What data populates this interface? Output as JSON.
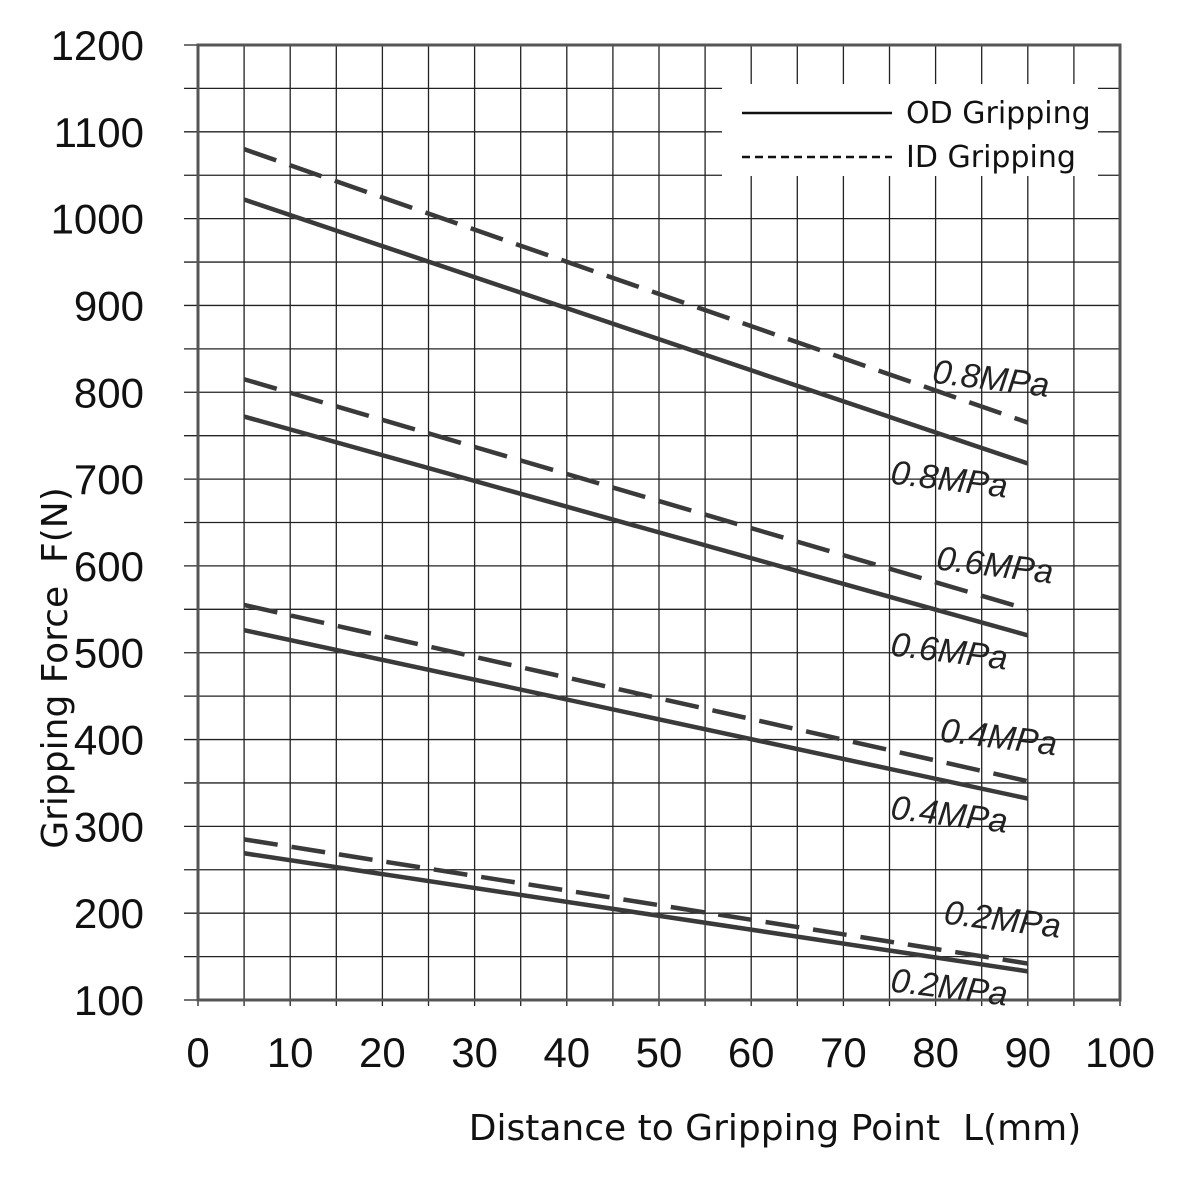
{
  "chart_data": {
    "type": "line",
    "title": "",
    "xlabel": "Distance to Gripping Point  L(mm)",
    "ylabel": "Gripping Force  F(N)",
    "xlim": [
      0,
      100
    ],
    "ylim": [
      100,
      1200
    ],
    "x_ticks": [
      "0",
      "10",
      "20",
      "30",
      "40",
      "50",
      "60",
      "70",
      "80",
      "90",
      "100"
    ],
    "y_ticks": [
      "100",
      "200",
      "300",
      "400",
      "500",
      "600",
      "700",
      "800",
      "900",
      "1000",
      "1100",
      "1200"
    ],
    "grid": true,
    "legend": {
      "placement": "top-right",
      "entries": [
        {
          "label": "OD Gripping",
          "style": "solid"
        },
        {
          "label": "ID Gripping",
          "style": "dashed"
        }
      ]
    },
    "line_color": "#3a3a3a",
    "series": [
      {
        "label": "0.8MPa",
        "group": "ID Gripping",
        "style": "dashed",
        "x": [
          5,
          90
        ],
        "y": [
          1080,
          765
        ]
      },
      {
        "label": "0.8MPa",
        "group": "OD Gripping",
        "style": "solid",
        "x": [
          5,
          90
        ],
        "y": [
          1022,
          718
        ]
      },
      {
        "label": "0.6MPa",
        "group": "ID Gripping",
        "style": "dashed",
        "x": [
          5,
          90
        ],
        "y": [
          815,
          550
        ]
      },
      {
        "label": "0.6MPa",
        "group": "OD Gripping",
        "style": "solid",
        "x": [
          5,
          90
        ],
        "y": [
          772,
          520
        ]
      },
      {
        "label": "0.4MPa",
        "group": "ID Gripping",
        "style": "dashed",
        "x": [
          5,
          90
        ],
        "y": [
          555,
          352
        ]
      },
      {
        "label": "0.4MPa",
        "group": "OD Gripping",
        "style": "solid",
        "x": [
          5,
          90
        ],
        "y": [
          526,
          332
        ]
      },
      {
        "label": "0.2MPa",
        "group": "ID Gripping",
        "style": "dashed",
        "x": [
          5,
          90
        ],
        "y": [
          285,
          142
        ]
      },
      {
        "label": "0.2MPa",
        "group": "OD Gripping",
        "style": "solid",
        "x": [
          5,
          90
        ],
        "y": [
          269,
          133
        ]
      }
    ]
  }
}
